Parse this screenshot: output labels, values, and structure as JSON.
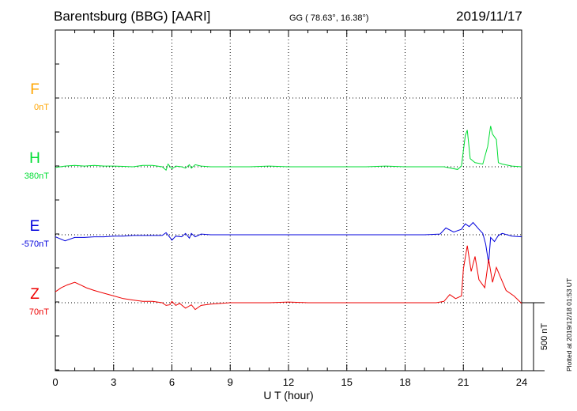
{
  "header": {
    "station": "Barentsburg (BBG)  [AARI]",
    "coords": "GG ( 78.63°,  16.38°)",
    "date": "2019/11/17"
  },
  "plotted_note": "Plotted at 2019/12/18 01:53 UT",
  "chart_data": {
    "type": "line",
    "xlabel": "U T (hour)",
    "xlim": [
      0,
      24
    ],
    "x_ticks": [
      0,
      3,
      6,
      9,
      12,
      15,
      18,
      21,
      24
    ],
    "scale_label": "500 nT",
    "scale_nT": 500,
    "grid": true,
    "series": [
      {
        "name": "F",
        "baseline_label": "0nT",
        "color": "#ffa500",
        "points": []
      },
      {
        "name": "H",
        "baseline_label": "380nT",
        "color": "#00dd33",
        "points": [
          [
            0,
            -5
          ],
          [
            0.5,
            5
          ],
          [
            1,
            10
          ],
          [
            1.5,
            5
          ],
          [
            2,
            10
          ],
          [
            2.5,
            5
          ],
          [
            3,
            5
          ],
          [
            3.5,
            3
          ],
          [
            4,
            0
          ],
          [
            4.5,
            10
          ],
          [
            5,
            10
          ],
          [
            5.5,
            0
          ],
          [
            5.7,
            -25
          ],
          [
            5.8,
            20
          ],
          [
            6,
            -15
          ],
          [
            6.2,
            5
          ],
          [
            6.5,
            0
          ],
          [
            6.7,
            -10
          ],
          [
            6.9,
            15
          ],
          [
            7,
            -10
          ],
          [
            7.2,
            15
          ],
          [
            7.5,
            5
          ],
          [
            8,
            0
          ],
          [
            9,
            0
          ],
          [
            10,
            0
          ],
          [
            11,
            5
          ],
          [
            12,
            0
          ],
          [
            13,
            0
          ],
          [
            14,
            0
          ],
          [
            15,
            0
          ],
          [
            16,
            0
          ],
          [
            17,
            5
          ],
          [
            18,
            0
          ],
          [
            19,
            0
          ],
          [
            20,
            0
          ],
          [
            20.7,
            -20
          ],
          [
            20.9,
            5
          ],
          [
            21.1,
            230
          ],
          [
            21.2,
            270
          ],
          [
            21.35,
            60
          ],
          [
            21.6,
            30
          ],
          [
            22,
            20
          ],
          [
            22.25,
            150
          ],
          [
            22.4,
            300
          ],
          [
            22.5,
            240
          ],
          [
            22.7,
            200
          ],
          [
            22.8,
            30
          ],
          [
            23,
            20
          ],
          [
            23.5,
            5
          ],
          [
            24,
            0
          ]
        ]
      },
      {
        "name": "E",
        "baseline_label": "-570nT",
        "color": "#0000dd",
        "points": [
          [
            0,
            -15
          ],
          [
            0.5,
            -45
          ],
          [
            1,
            -20
          ],
          [
            1.5,
            -20
          ],
          [
            2,
            -15
          ],
          [
            2.5,
            -15
          ],
          [
            3,
            -10
          ],
          [
            3.5,
            -10
          ],
          [
            4,
            -5
          ],
          [
            5,
            -5
          ],
          [
            5.5,
            -5
          ],
          [
            5.7,
            15
          ],
          [
            5.9,
            -20
          ],
          [
            6,
            -40
          ],
          [
            6.2,
            -10
          ],
          [
            6.5,
            -15
          ],
          [
            6.7,
            10
          ],
          [
            6.9,
            -25
          ],
          [
            7,
            10
          ],
          [
            7.2,
            -15
          ],
          [
            7.5,
            5
          ],
          [
            8,
            0
          ],
          [
            9,
            0
          ],
          [
            10,
            0
          ],
          [
            11,
            0
          ],
          [
            12,
            0
          ],
          [
            13,
            0
          ],
          [
            14,
            0
          ],
          [
            15,
            0
          ],
          [
            16,
            0
          ],
          [
            17,
            0
          ],
          [
            18,
            0
          ],
          [
            19,
            0
          ],
          [
            19.8,
            5
          ],
          [
            20.1,
            50
          ],
          [
            20.5,
            20
          ],
          [
            20.9,
            40
          ],
          [
            21.1,
            80
          ],
          [
            21.3,
            60
          ],
          [
            21.5,
            90
          ],
          [
            21.8,
            40
          ],
          [
            22,
            10
          ],
          [
            22.15,
            -70
          ],
          [
            22.3,
            -210
          ],
          [
            22.4,
            -20
          ],
          [
            22.6,
            -50
          ],
          [
            22.8,
            -5
          ],
          [
            23,
            10
          ],
          [
            23.5,
            -10
          ],
          [
            24,
            -15
          ]
        ]
      },
      {
        "name": "Z",
        "baseline_label": "70nT",
        "color": "#ee0000",
        "points": [
          [
            0,
            80
          ],
          [
            0.3,
            110
          ],
          [
            0.6,
            130
          ],
          [
            1,
            150
          ],
          [
            1.3,
            130
          ],
          [
            1.6,
            110
          ],
          [
            2,
            90
          ],
          [
            2.5,
            70
          ],
          [
            3,
            50
          ],
          [
            3.5,
            30
          ],
          [
            4,
            20
          ],
          [
            4.5,
            10
          ],
          [
            5,
            10
          ],
          [
            5.5,
            0
          ],
          [
            5.7,
            -20
          ],
          [
            5.9,
            -15
          ],
          [
            6,
            10
          ],
          [
            6.2,
            -20
          ],
          [
            6.4,
            -5
          ],
          [
            6.7,
            -40
          ],
          [
            7,
            -15
          ],
          [
            7.2,
            -50
          ],
          [
            7.5,
            -20
          ],
          [
            8,
            -10
          ],
          [
            9,
            0
          ],
          [
            10,
            0
          ],
          [
            11,
            0
          ],
          [
            12,
            5
          ],
          [
            13,
            0
          ],
          [
            14,
            0
          ],
          [
            15,
            0
          ],
          [
            16,
            0
          ],
          [
            17,
            0
          ],
          [
            18,
            0
          ],
          [
            19,
            0
          ],
          [
            19.6,
            0
          ],
          [
            20,
            10
          ],
          [
            20.3,
            60
          ],
          [
            20.6,
            30
          ],
          [
            20.9,
            50
          ],
          [
            21.0,
            250
          ],
          [
            21.2,
            420
          ],
          [
            21.4,
            230
          ],
          [
            21.6,
            340
          ],
          [
            21.8,
            170
          ],
          [
            22.1,
            110
          ],
          [
            22.3,
            320
          ],
          [
            22.5,
            150
          ],
          [
            22.7,
            260
          ],
          [
            22.9,
            190
          ],
          [
            23.2,
            90
          ],
          [
            23.6,
            50
          ],
          [
            24,
            -5
          ]
        ]
      }
    ]
  }
}
